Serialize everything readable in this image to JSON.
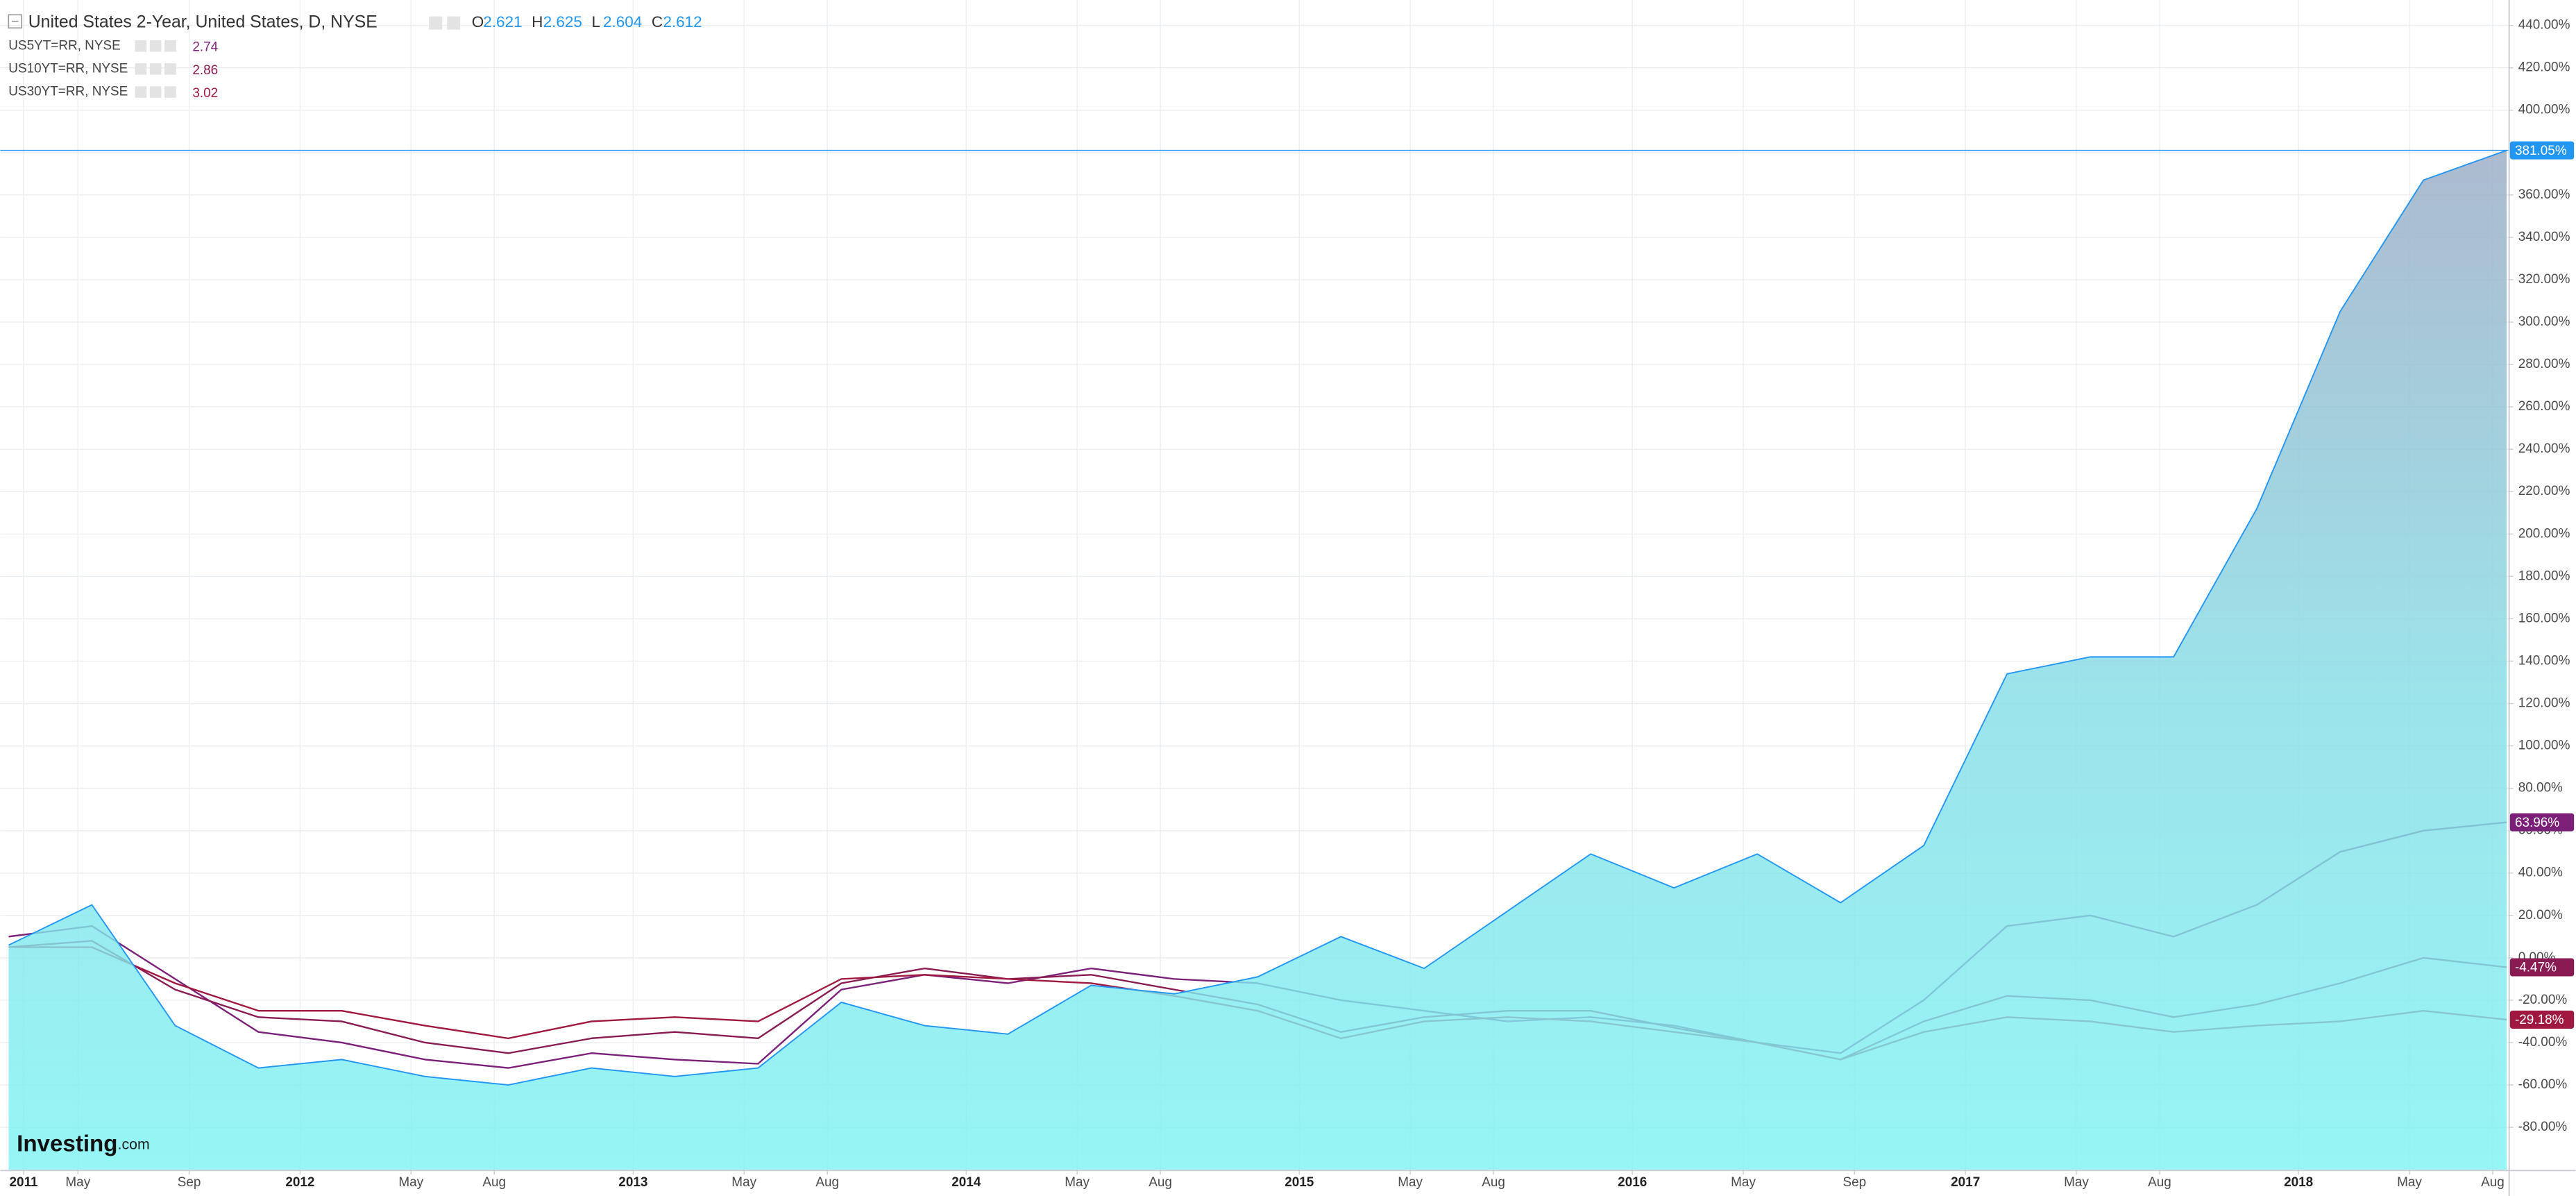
{
  "chart_data": {
    "type": "line",
    "x": [
      2011.125,
      2011.375,
      2011.625,
      2011.875,
      2012.125,
      2012.375,
      2012.625,
      2012.875,
      2013.125,
      2013.375,
      2013.625,
      2013.875,
      2014.125,
      2014.375,
      2014.625,
      2014.875,
      2015.125,
      2015.375,
      2015.625,
      2015.875,
      2016.125,
      2016.375,
      2016.625,
      2016.875,
      2017.125,
      2017.375,
      2017.625,
      2017.875,
      2018.125,
      2018.375,
      2018.625
    ],
    "xlim": [
      2011.1,
      2018.63
    ],
    "xticks": [
      {
        "value": 2011.17,
        "label": "2011"
      },
      {
        "value": 2011.333,
        "label": "May"
      },
      {
        "value": 2011.667,
        "label": "Sep"
      },
      2012,
      {
        "value": 2012.333,
        "label": "May"
      },
      {
        "value": 2012.583,
        "label": "Aug"
      },
      2013,
      {
        "value": 2013.333,
        "label": "May"
      },
      {
        "value": 2013.583,
        "label": "Aug"
      },
      2014,
      {
        "value": 2014.333,
        "label": "May"
      },
      {
        "value": 2014.583,
        "label": "Aug"
      },
      2015,
      {
        "value": 2015.333,
        "label": "May"
      },
      {
        "value": 2015.583,
        "label": "Aug"
      },
      2016,
      {
        "value": 2016.333,
        "label": "May"
      },
      {
        "value": 2016.667,
        "label": "Sep"
      },
      2017,
      {
        "value": 2017.333,
        "label": "May"
      },
      {
        "value": 2017.583,
        "label": "Aug"
      },
      2018,
      {
        "value": 2018.333,
        "label": "May"
      },
      {
        "value": 2018.583,
        "label": "Aug"
      }
    ],
    "ylim": [
      -100,
      452
    ],
    "yticks": [
      {
        "value": -80,
        "label": "-80.00%"
      },
      {
        "value": -60,
        "label": "-60.00%"
      },
      {
        "value": -40,
        "label": "-40.00%"
      },
      {
        "value": -20,
        "label": "-20.00%"
      },
      {
        "value": 0,
        "label": "0.00%"
      },
      {
        "value": 20,
        "label": "20.00%"
      },
      {
        "value": 40,
        "label": "40.00%"
      },
      {
        "value": 60,
        "label": "60.00%"
      },
      {
        "value": 80,
        "label": "80.00%"
      },
      {
        "value": 100,
        "label": "100.00%"
      },
      {
        "value": 120,
        "label": "120.00%"
      },
      {
        "value": 140,
        "label": "140.00%"
      },
      {
        "value": 160,
        "label": "160.00%"
      },
      {
        "value": 180,
        "label": "180.00%"
      },
      {
        "value": 200,
        "label": "200.00%"
      },
      {
        "value": 220,
        "label": "220.00%"
      },
      {
        "value": 240,
        "label": "240.00%"
      },
      {
        "value": 260,
        "label": "260.00%"
      },
      {
        "value": 280,
        "label": "280.00%"
      },
      {
        "value": 300,
        "label": "300.00%"
      },
      {
        "value": 320,
        "label": "320.00%"
      },
      {
        "value": 340,
        "label": "340.00%"
      },
      {
        "value": 360,
        "label": "360.00%"
      },
      {
        "value": 380,
        "label": "380.00%"
      },
      {
        "value": 400,
        "label": "400.00%"
      },
      {
        "value": 420,
        "label": "420.00%"
      },
      {
        "value": 440,
        "label": "440.00%"
      }
    ],
    "grid": true,
    "series": [
      {
        "name": "United States 2-Year, United States, D, NYSE",
        "type": "area",
        "color": "#2196f3",
        "ohlc": [
          {
            "label": "O",
            "value": 2.621
          },
          {
            "label": "H",
            "value": 2.625
          },
          {
            "label": "L",
            "value": 2.604
          },
          {
            "label": "C",
            "value": 2.612
          }
        ],
        "values": [
          6,
          25,
          -32,
          -52,
          -48,
          -56,
          -60,
          -52,
          -56,
          -52,
          -21,
          -32,
          -36,
          -13,
          -17,
          -9,
          10,
          -5,
          22,
          49,
          33,
          49,
          26,
          53,
          134,
          142,
          142,
          212,
          305,
          367,
          381.05
        ],
        "value_labels": [
          null,
          null,
          null,
          null,
          null,
          null,
          null,
          null,
          null,
          null,
          null,
          null,
          null,
          null,
          null,
          null,
          null,
          null,
          null,
          null,
          null,
          null,
          null,
          null,
          null,
          null,
          null,
          null,
          null,
          null,
          "381.05%"
        ]
      },
      {
        "name": "US5YT=RR, NYSE",
        "type": "line",
        "color": "#7b1f79",
        "quote": 2.74,
        "values": [
          10,
          15,
          -10,
          -35,
          -40,
          -48,
          -52,
          -45,
          -48,
          -50,
          -15,
          -8,
          -12,
          -5,
          -10,
          -12,
          -20,
          -25,
          -30,
          -28,
          -32,
          -40,
          -45,
          -20,
          15,
          20,
          10,
          25,
          50,
          60,
          63.96
        ],
        "value_labels": [
          null,
          null,
          null,
          null,
          null,
          null,
          null,
          null,
          null,
          null,
          null,
          null,
          null,
          null,
          null,
          null,
          null,
          null,
          null,
          null,
          null,
          null,
          null,
          null,
          null,
          null,
          null,
          null,
          null,
          null,
          "63.96%"
        ]
      },
      {
        "name": "US10YT=RR, NYSE",
        "type": "line",
        "color": "#8a1a52",
        "quote": 2.86,
        "values": [
          5,
          8,
          -15,
          -28,
          -30,
          -40,
          -45,
          -38,
          -35,
          -38,
          -12,
          -5,
          -10,
          -8,
          -15,
          -22,
          -35,
          -28,
          -25,
          -25,
          -33,
          -40,
          -48,
          -30,
          -18,
          -20,
          -28,
          -22,
          -12,
          0,
          -4.47
        ],
        "value_labels": [
          null,
          null,
          null,
          null,
          null,
          null,
          null,
          null,
          null,
          null,
          null,
          null,
          null,
          null,
          null,
          null,
          null,
          null,
          null,
          null,
          null,
          null,
          null,
          null,
          null,
          null,
          null,
          null,
          null,
          null,
          "-4.47%"
        ]
      },
      {
        "name": "US30YT=RR, NYSE",
        "type": "line",
        "color": "#a0173f",
        "quote": 3.02,
        "values": [
          5,
          5,
          -12,
          -25,
          -25,
          -32,
          -38,
          -30,
          -28,
          -30,
          -10,
          -8,
          -10,
          -12,
          -18,
          -25,
          -38,
          -30,
          -28,
          -30,
          -35,
          -40,
          -48,
          -35,
          -28,
          -30,
          -35,
          -32,
          -30,
          -25,
          -29.18
        ],
        "value_labels": [
          null,
          null,
          null,
          null,
          null,
          null,
          null,
          null,
          null,
          null,
          null,
          null,
          null,
          null,
          null,
          null,
          null,
          null,
          null,
          null,
          null,
          null,
          null,
          null,
          null,
          null,
          null,
          null,
          null,
          null,
          "-29.18%"
        ]
      }
    ],
    "watermark": [
      "Investing",
      ".com"
    ]
  }
}
